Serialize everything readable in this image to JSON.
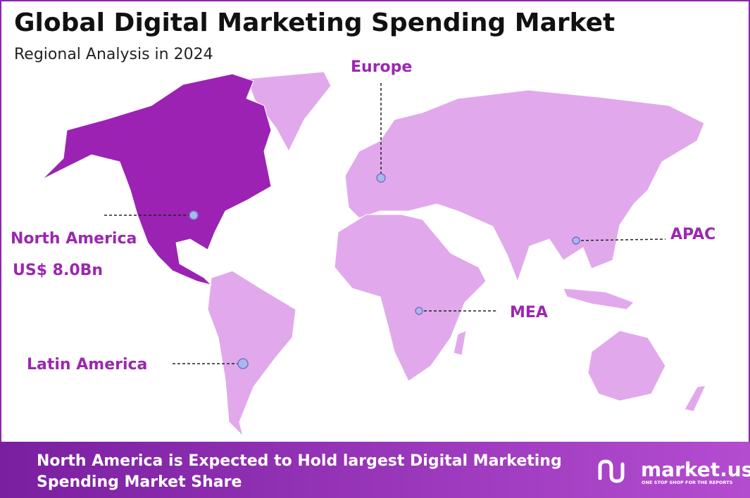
{
  "header": {
    "title": "Global Digital Marketing Spending Market",
    "subtitle": "Regional Analysis in 2024"
  },
  "regions": [
    {
      "label": "North America",
      "value": "US$ 8.0Bn"
    },
    {
      "label": "Europe"
    },
    {
      "label": "APAC"
    },
    {
      "label": "MEA"
    },
    {
      "label": "Latin America"
    }
  ],
  "footer": {
    "lines": [
      "North America is Expected to Hold largest Digital Marketing",
      "Spending Market Share"
    ],
    "logo": "market.us",
    "tagline": "ONE STOP SHOP FOR THE REPORTS"
  }
}
